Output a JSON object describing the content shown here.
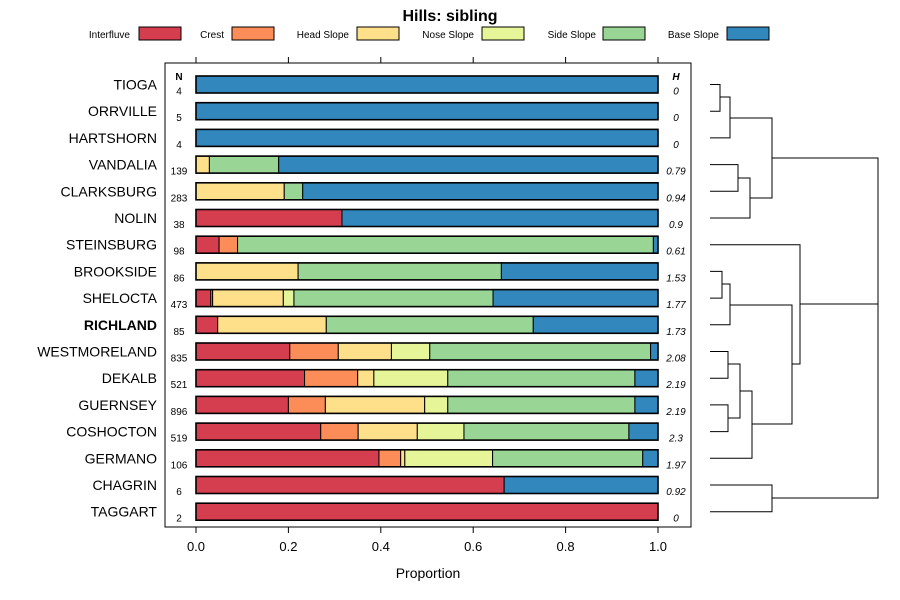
{
  "chart_data": {
    "type": "bar",
    "orientation": "horizontal",
    "stacked": true,
    "title": "Hills: sibling",
    "xlabel": "Proportion",
    "ylabel": "",
    "xlim": [
      0,
      1
    ],
    "xticks": [
      "0.0",
      "0.2",
      "0.4",
      "0.6",
      "0.8",
      "1.0"
    ],
    "n_header": "N",
    "h_header": "H",
    "highlight": "RICHLAND",
    "legend": [
      {
        "name": "Interfluve",
        "color": "#D53E4F"
      },
      {
        "name": "Crest",
        "color": "#FC8D59"
      },
      {
        "name": "Head Slope",
        "color": "#FEE08B"
      },
      {
        "name": "Nose Slope",
        "color": "#E6F598"
      },
      {
        "name": "Side Slope",
        "color": "#99D594"
      },
      {
        "name": "Base Slope",
        "color": "#3288BD"
      }
    ],
    "categories": [
      "TIOGA",
      "ORRVILLE",
      "HARTSHORN",
      "VANDALIA",
      "CLARKSBURG",
      "NOLIN",
      "STEINSBURG",
      "BROOKSIDE",
      "SHELOCTA",
      "RICHLAND",
      "WESTMORELAND",
      "DEKALB",
      "GUERNSEY",
      "COSHOCTON",
      "GERMANO",
      "CHAGRIN",
      "TAGGART"
    ],
    "n": [
      "4",
      "5",
      "4",
      "139",
      "283",
      "38",
      "98",
      "86",
      "473",
      "85",
      "835",
      "521",
      "896",
      "519",
      "106",
      "6",
      "2"
    ],
    "h": [
      "0",
      "0",
      "0",
      "0.79",
      "0.94",
      "0.9",
      "0.61",
      "1.53",
      "1.77",
      "1.73",
      "2.08",
      "2.19",
      "2.19",
      "2.3",
      "1.97",
      "0.92",
      "0"
    ],
    "series": [
      {
        "name": "Interfluve",
        "values": [
          0,
          0,
          0,
          0,
          0,
          0.316,
          0.05,
          0,
          0.032,
          0.047,
          0.203,
          0.235,
          0.2,
          0.27,
          0.396,
          0.667,
          1.0
        ]
      },
      {
        "name": "Crest",
        "values": [
          0,
          0,
          0,
          0,
          0,
          0,
          0.04,
          0,
          0.004,
          0,
          0.105,
          0.115,
          0.08,
          0.081,
          0.047,
          0,
          0
        ]
      },
      {
        "name": "Head Slope",
        "values": [
          0,
          0,
          0,
          0.029,
          0.191,
          0,
          0,
          0.221,
          0.153,
          0.235,
          0.115,
          0.035,
          0.215,
          0.128,
          0.009,
          0,
          0
        ]
      },
      {
        "name": "Nose Slope",
        "values": [
          0,
          0,
          0,
          0,
          0,
          0,
          0,
          0,
          0.023,
          0,
          0.083,
          0.16,
          0.05,
          0.101,
          0.19,
          0,
          0
        ]
      },
      {
        "name": "Side Slope",
        "values": [
          0,
          0,
          0,
          0.15,
          0.04,
          0,
          0.9,
          0.44,
          0.431,
          0.448,
          0.478,
          0.405,
          0.405,
          0.357,
          0.325,
          0,
          0
        ]
      },
      {
        "name": "Base Slope",
        "values": [
          1.0,
          1.0,
          1.0,
          0.821,
          0.769,
          0.684,
          0.01,
          0.339,
          0.357,
          0.27,
          0.016,
          0.05,
          0.05,
          0.063,
          0.033,
          0.333,
          0
        ]
      }
    ]
  }
}
